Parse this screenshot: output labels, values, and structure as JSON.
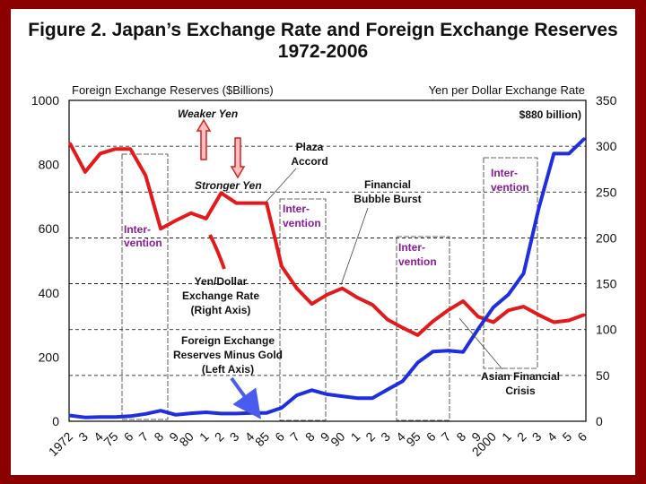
{
  "title_line1": "Figure 2.  Japan’s Exchange Rate and Foreign Exchange Reserves",
  "title_line2": "1972-2006",
  "colors": {
    "background": "#8b0000",
    "reserves": "#1f2fe0",
    "yen": "#e31a1c",
    "intervention": "#8b1a9a",
    "grid": "#000000"
  },
  "chart_data": {
    "type": "line",
    "left_axis_label": "Foreign Exchange Reserves ($Billions)",
    "right_axis_label": "Yen per Dollar Exchange Rate",
    "left_ylim": [
      0,
      1000
    ],
    "right_ylim": [
      0,
      350
    ],
    "left_ticks": [
      "0",
      "200",
      "400",
      "600",
      "800",
      "1000"
    ],
    "right_ticks": [
      "0",
      "50",
      "100",
      "150",
      "200",
      "250",
      "300",
      "350"
    ],
    "x_tick_labels": [
      "1972",
      "3",
      "4",
      "75",
      "6",
      "7",
      "8",
      "9",
      "80",
      "1",
      "2",
      "3",
      "4",
      "85",
      "6",
      "7",
      "8",
      "9",
      "90",
      "1",
      "2",
      "3",
      "4",
      "95",
      "6",
      "7",
      "8",
      "9",
      "2000",
      "1",
      "2",
      "3",
      "4",
      "5",
      "6"
    ],
    "years": [
      1972,
      1973,
      1974,
      1975,
      1976,
      1977,
      1978,
      1979,
      1980,
      1981,
      1982,
      1983,
      1984,
      1985,
      1986,
      1987,
      1988,
      1989,
      1990,
      1991,
      1992,
      1993,
      1994,
      1995,
      1996,
      1997,
      1998,
      1999,
      2000,
      2001,
      2002,
      2003,
      2004,
      2005,
      2006
    ],
    "series": [
      {
        "name": "Foreign Exchange Reserves Minus Gold (Left Axis)",
        "axis": "left",
        "values": [
          18,
          12,
          13,
          13,
          16,
          23,
          33,
          20,
          25,
          28,
          24,
          24,
          26,
          26,
          42,
          81,
          97,
          84,
          78,
          72,
          72,
          99,
          125,
          183,
          217,
          220,
          216,
          288,
          355,
          395,
          461,
          663,
          834,
          834,
          880
        ]
      },
      {
        "name": "Yen/Dollar Exchange Rate (Right Axis)",
        "axis": "right",
        "values": [
          303,
          272,
          292,
          297,
          297,
          268,
          210,
          219,
          227,
          221,
          249,
          238,
          238,
          238,
          169,
          145,
          128,
          138,
          145,
          135,
          127,
          111,
          102,
          94,
          109,
          121,
          131,
          114,
          108,
          121,
          125,
          116,
          108,
          110,
          116
        ]
      }
    ],
    "annotations": {
      "weaker_yen": "Weaker Yen",
      "stronger_yen": "Stronger Yen",
      "plaza_line1": "Plaza",
      "plaza_line2": "Accord",
      "bubble_line1": "Financial",
      "bubble_line2": "Bubble Burst",
      "intervention_line1": "Inter-",
      "intervention_line2": "vention",
      "yen_label_line1": "Yen/Dollar",
      "yen_label_line2": "Exchange Rate",
      "yen_label_line3": "(Right Axis)",
      "fx_label_line1": "Foreign Exchange",
      "fx_label_line2": "Reserves Minus Gold",
      "fx_label_line3": "(Left Axis)",
      "asian_line1": "Asian Financial",
      "asian_line2": "Crisis",
      "reserves_peak": "$880 billion)"
    }
  }
}
